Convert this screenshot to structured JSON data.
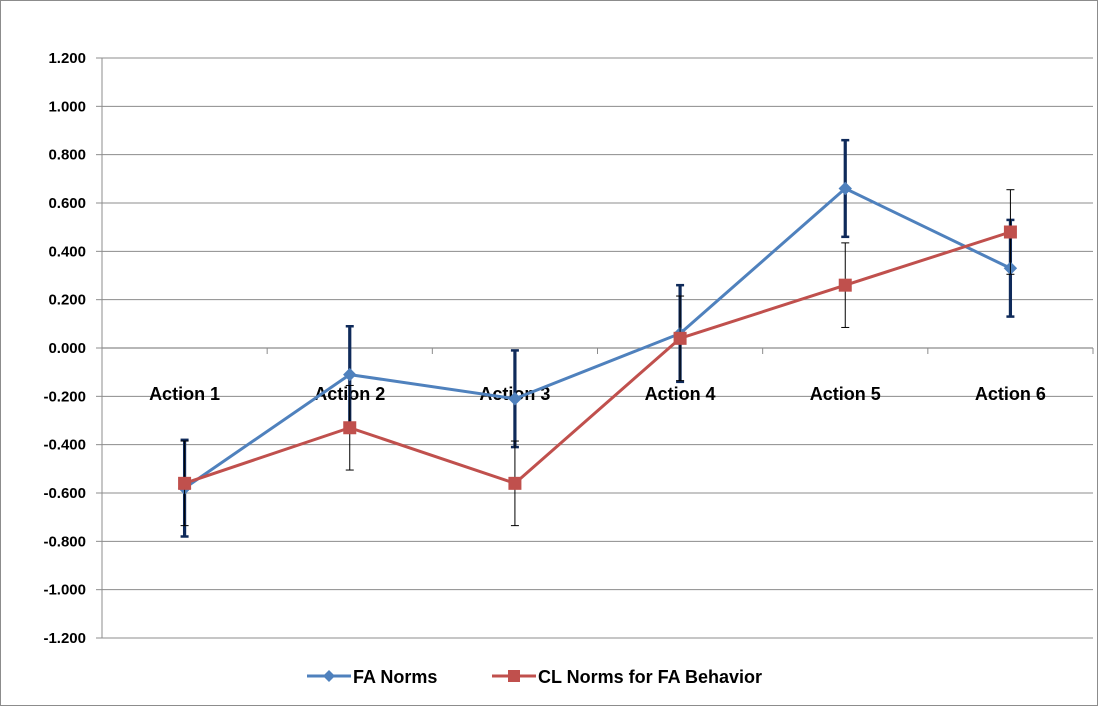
{
  "chart_data": {
    "type": "line",
    "categories": [
      "Action 1",
      "Action 2",
      "Action 3",
      "Action 4",
      "Action 5",
      "Action 6"
    ],
    "ylim": [
      -1.2,
      1.2
    ],
    "ytick_step": 0.2,
    "ytick_labels": [
      "1.200",
      "1.000",
      "0.800",
      "0.600",
      "0.400",
      "0.200",
      "0.000",
      "-0.200",
      "-0.400",
      "-0.600",
      "-0.800",
      "-1.000",
      "-1.200"
    ],
    "grid": true,
    "legend_position": "bottom",
    "series": [
      {
        "name": "FA Norms",
        "color": "#4f81bd",
        "marker": "diamond",
        "values": [
          -0.58,
          -0.11,
          -0.21,
          0.06,
          0.66,
          0.33
        ],
        "error": [
          0.2,
          0.2,
          0.2,
          0.2,
          0.2,
          0.2
        ],
        "error_color": "#0f2a5a"
      },
      {
        "name": "CL Norms for FA Behavior",
        "color": "#c0504d",
        "marker": "square",
        "values": [
          -0.56,
          -0.33,
          -0.56,
          0.04,
          0.26,
          0.48
        ],
        "error": [
          0.175,
          0.175,
          0.175,
          0.175,
          0.175,
          0.175
        ],
        "error_color": "#000000"
      }
    ]
  }
}
